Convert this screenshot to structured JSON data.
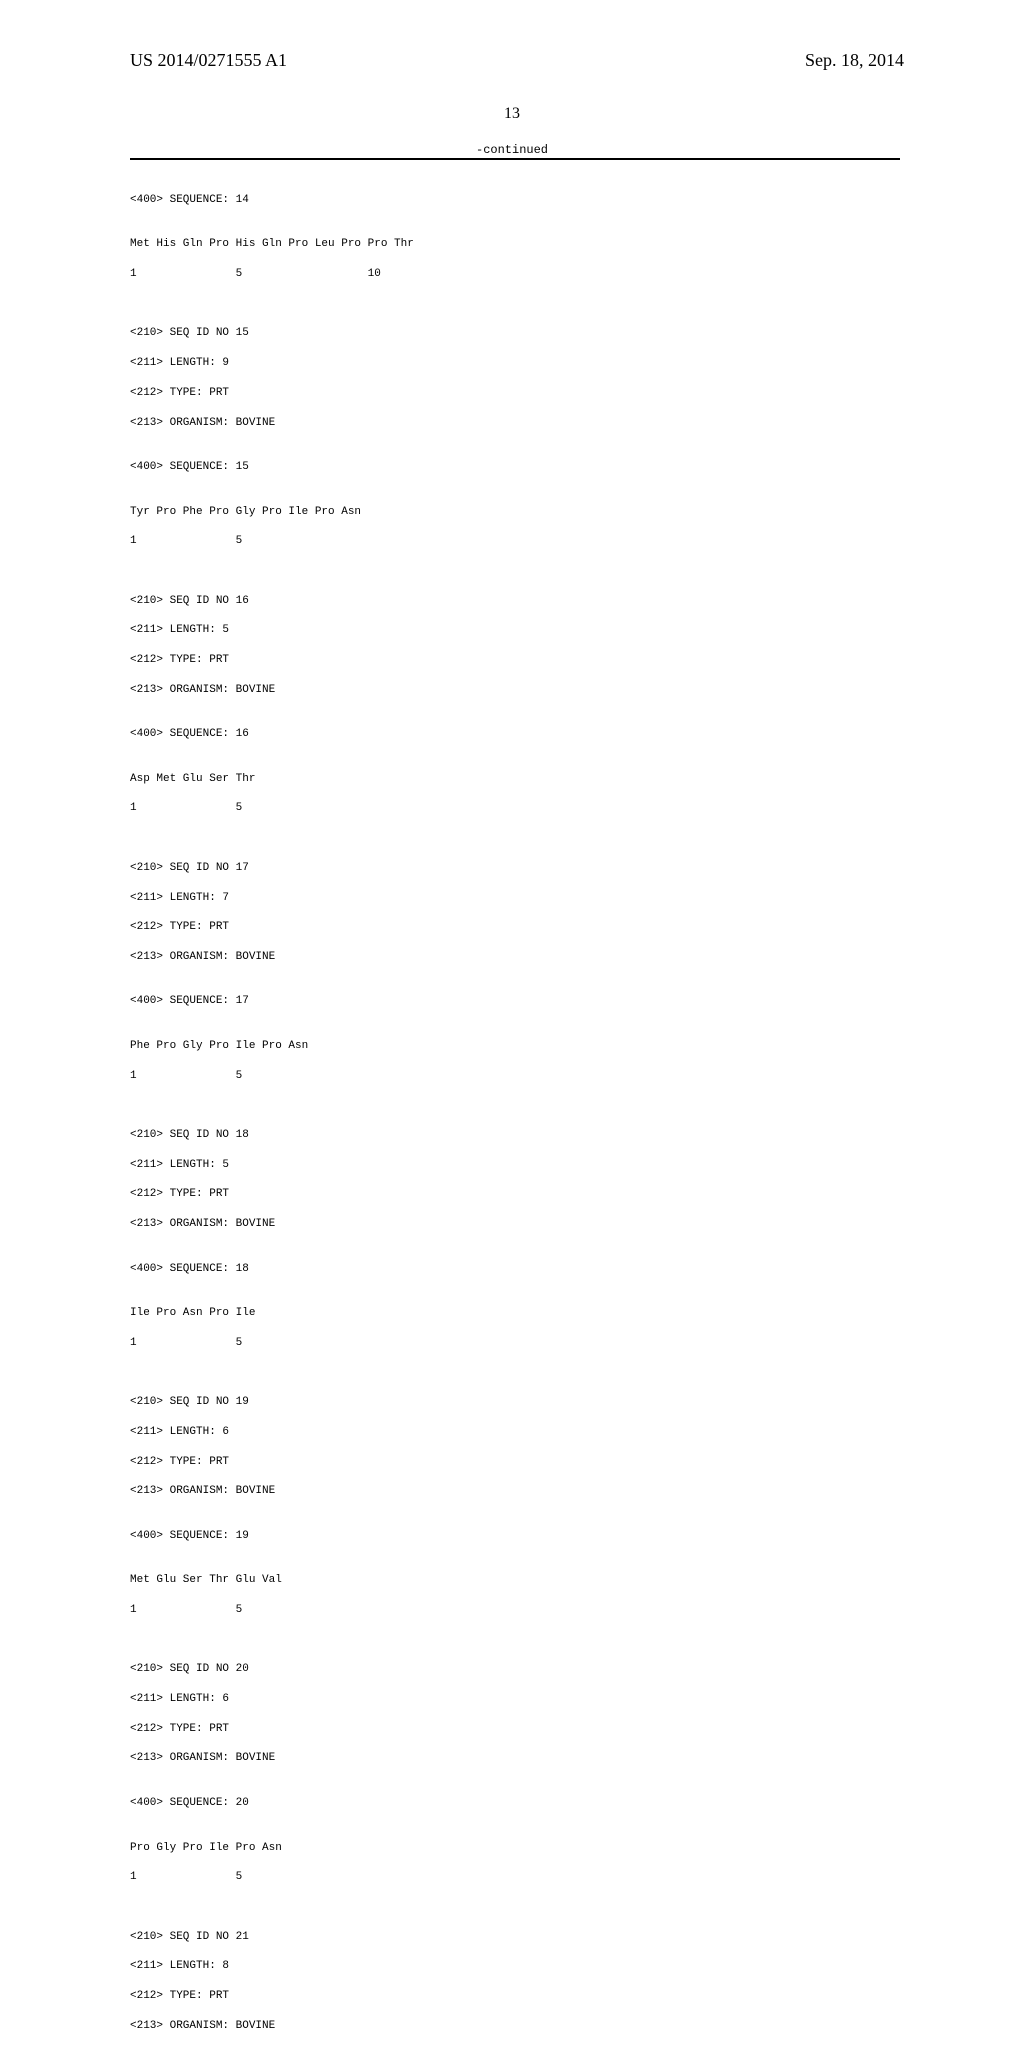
{
  "header": {
    "patent_number": "US 2014/0271555 A1",
    "date": "Sep. 18, 2014"
  },
  "page_number": "13",
  "continued_label": "-continued",
  "sequences": {
    "seq14": {
      "header": "<400> SEQUENCE: 14",
      "line1": "Met His Gln Pro His Gln Pro Leu Pro Pro Thr",
      "line2": "1               5                   10"
    },
    "seq15": {
      "id": "<210> SEQ ID NO 15",
      "length": "<211> LENGTH: 9",
      "type": "<212> TYPE: PRT",
      "organism": "<213> ORGANISM: BOVINE",
      "header": "<400> SEQUENCE: 15",
      "line1": "Tyr Pro Phe Pro Gly Pro Ile Pro Asn",
      "line2": "1               5"
    },
    "seq16": {
      "id": "<210> SEQ ID NO 16",
      "length": "<211> LENGTH: 5",
      "type": "<212> TYPE: PRT",
      "organism": "<213> ORGANISM: BOVINE",
      "header": "<400> SEQUENCE: 16",
      "line1": "Asp Met Glu Ser Thr",
      "line2": "1               5"
    },
    "seq17": {
      "id": "<210> SEQ ID NO 17",
      "length": "<211> LENGTH: 7",
      "type": "<212> TYPE: PRT",
      "organism": "<213> ORGANISM: BOVINE",
      "header": "<400> SEQUENCE: 17",
      "line1": "Phe Pro Gly Pro Ile Pro Asn",
      "line2": "1               5"
    },
    "seq18": {
      "id": "<210> SEQ ID NO 18",
      "length": "<211> LENGTH: 5",
      "type": "<212> TYPE: PRT",
      "organism": "<213> ORGANISM: BOVINE",
      "header": "<400> SEQUENCE: 18",
      "line1": "Ile Pro Asn Pro Ile",
      "line2": "1               5"
    },
    "seq19": {
      "id": "<210> SEQ ID NO 19",
      "length": "<211> LENGTH: 6",
      "type": "<212> TYPE: PRT",
      "organism": "<213> ORGANISM: BOVINE",
      "header": "<400> SEQUENCE: 19",
      "line1": "Met Glu Ser Thr Glu Val",
      "line2": "1               5"
    },
    "seq20": {
      "id": "<210> SEQ ID NO 20",
      "length": "<211> LENGTH: 6",
      "type": "<212> TYPE: PRT",
      "organism": "<213> ORGANISM: BOVINE",
      "header": "<400> SEQUENCE: 20",
      "line1": "Pro Gly Pro Ile Pro Asn",
      "line2": "1               5"
    },
    "seq21": {
      "id": "<210> SEQ ID NO 21",
      "length": "<211> LENGTH: 8",
      "type": "<212> TYPE: PRT",
      "organism": "<213> ORGANISM: BOVINE"
    }
  }
}
